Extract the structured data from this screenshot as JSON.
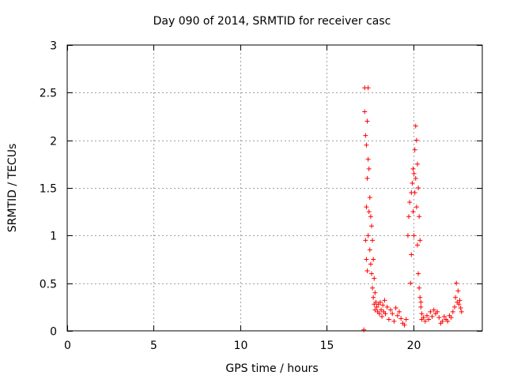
{
  "colors": {
    "series": "#ff0000",
    "axis": "#000000",
    "grid": "#a0a0a0",
    "background": "#ffffff"
  },
  "chart_data": {
    "type": "scatter",
    "title": "Day 090 of 2014, SRMTID for receiver casc",
    "xlabel": "GPS time / hours",
    "ylabel": "SRMTID / TECUs",
    "xlim": [
      0,
      24
    ],
    "ylim": [
      0,
      3
    ],
    "x_ticks": [
      0,
      5,
      10,
      15,
      20
    ],
    "x_tick_labels": [
      "0",
      "5",
      "10",
      "15",
      "20"
    ],
    "y_ticks": [
      0,
      0.5,
      1,
      1.5,
      2,
      2.5,
      3
    ],
    "y_tick_labels": [
      "0",
      "0.5",
      "1",
      "1.5",
      "2",
      "2.5",
      "3"
    ],
    "grid": true,
    "marker": "+",
    "series": [
      {
        "name": "SRMTID",
        "x": [
          17.15,
          17.2,
          17.2,
          17.25,
          17.25,
          17.3,
          17.3,
          17.3,
          17.35,
          17.35,
          17.35,
          17.4,
          17.4,
          17.4,
          17.45,
          17.45,
          17.5,
          17.5,
          17.55,
          17.55,
          17.6,
          17.6,
          17.65,
          17.65,
          17.7,
          17.7,
          17.75,
          17.75,
          17.8,
          17.8,
          17.85,
          17.9,
          17.95,
          18.0,
          18.05,
          18.1,
          18.15,
          18.2,
          18.25,
          18.3,
          18.35,
          18.4,
          18.5,
          18.6,
          18.7,
          18.8,
          18.9,
          19.0,
          19.1,
          19.2,
          19.3,
          19.4,
          19.5,
          19.6,
          19.7,
          19.75,
          19.8,
          19.85,
          19.9,
          19.9,
          19.95,
          20.0,
          20.0,
          20.05,
          20.05,
          20.1,
          20.1,
          20.15,
          20.15,
          20.2,
          20.2,
          20.25,
          20.25,
          20.3,
          20.3,
          20.35,
          20.35,
          20.4,
          20.4,
          20.45,
          20.45,
          20.5,
          20.5,
          20.6,
          20.7,
          20.8,
          20.9,
          21.0,
          21.1,
          21.2,
          21.3,
          21.4,
          21.5,
          21.6,
          21.7,
          21.8,
          21.9,
          22.0,
          22.1,
          22.2,
          22.3,
          22.4,
          22.45,
          22.5,
          22.55,
          22.6,
          22.65,
          22.7,
          22.75,
          22.8
        ],
        "y": [
          0.01,
          2.55,
          2.3,
          2.05,
          0.95,
          1.95,
          1.3,
          0.75,
          2.2,
          1.6,
          0.63,
          2.55,
          1.8,
          1.0,
          1.7,
          1.25,
          1.4,
          0.85,
          1.2,
          0.7,
          1.1,
          0.6,
          0.95,
          0.45,
          0.75,
          0.35,
          0.55,
          0.28,
          0.4,
          0.22,
          0.3,
          0.25,
          0.2,
          0.28,
          0.18,
          0.3,
          0.22,
          0.15,
          0.27,
          0.2,
          0.32,
          0.18,
          0.25,
          0.12,
          0.22,
          0.18,
          0.1,
          0.24,
          0.16,
          0.2,
          0.13,
          0.08,
          0.06,
          0.12,
          1.0,
          1.2,
          1.35,
          0.5,
          1.45,
          0.8,
          1.55,
          1.7,
          1.25,
          1.65,
          1.0,
          1.9,
          1.45,
          2.15,
          1.6,
          2.0,
          1.3,
          1.75,
          0.9,
          1.5,
          0.6,
          1.2,
          0.45,
          0.95,
          0.35,
          0.3,
          0.25,
          0.18,
          0.12,
          0.14,
          0.1,
          0.16,
          0.12,
          0.2,
          0.15,
          0.22,
          0.18,
          0.2,
          0.14,
          0.08,
          0.1,
          0.15,
          0.12,
          0.1,
          0.16,
          0.14,
          0.2,
          0.25,
          0.35,
          0.5,
          0.3,
          0.42,
          0.28,
          0.32,
          0.24,
          0.2
        ]
      }
    ]
  }
}
